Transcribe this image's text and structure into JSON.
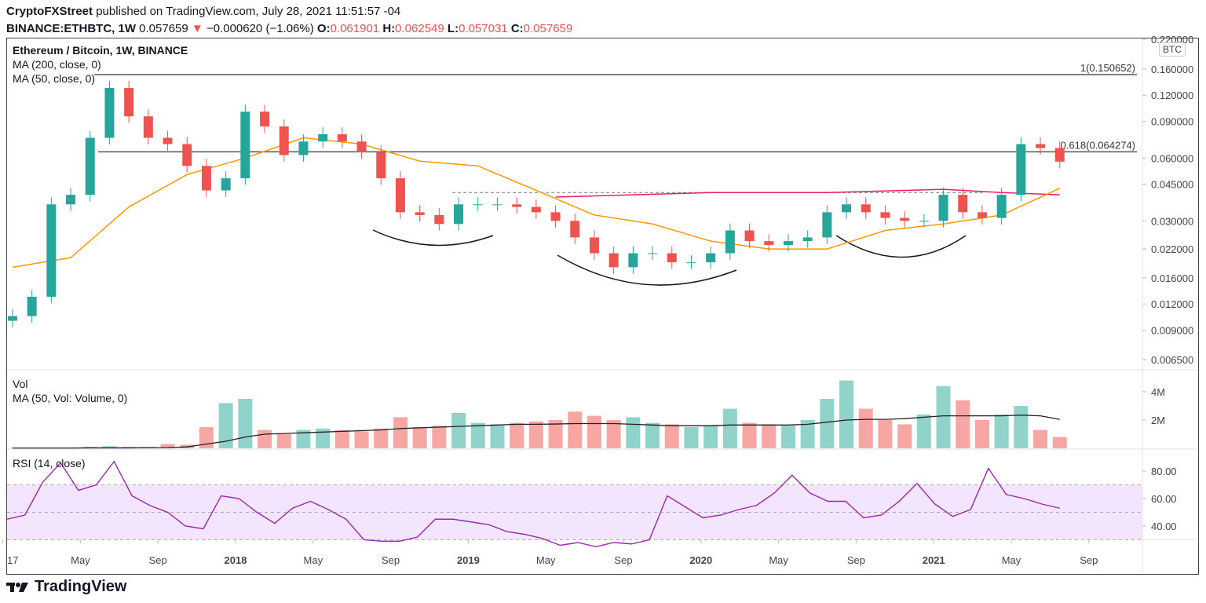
{
  "header": {
    "publisher": "CryptoFXStreet",
    "published_text": "published on TradingView.com, July 28, 2021 11:51:57 -04",
    "symbol": "BINANCE:ETHBTC, 1W",
    "last": "0.057659",
    "change": "−0.000620 (−1.06%)",
    "o_label": "O:",
    "o": "0.061901",
    "h_label": "H:",
    "h": "0.062549",
    "l_label": "L:",
    "l": "0.057031",
    "c_label": "C:",
    "c": "0.057659"
  },
  "legend": {
    "title": "Ethereum / Bitcoin, 1W, BINANCE",
    "ma200": "MA (200, close, 0)",
    "ma50": "MA (50, close, 0)",
    "vol": "Vol",
    "vol_ma": "MA (50, Vol: Volume, 0)",
    "rsi": "RSI (14, close)"
  },
  "currency": "BTC",
  "footer": {
    "brand": "TradingView"
  },
  "colors": {
    "up": "#26a69a",
    "down": "#ef5350",
    "vol_up": "#8fd3ca",
    "vol_down": "#f6a6a3",
    "ma50": "#ff9800",
    "ma200": "#e91e63",
    "rsi": "#9c27b0",
    "rsi_band": "#f3e5fd"
  },
  "chart_data": {
    "type": "candlestick",
    "scale": "log",
    "price_ticks": [
      "0.220000",
      "0.160000",
      "0.120000",
      "0.090000",
      "0.060000",
      "0.045000",
      "0.030000",
      "0.022000",
      "0.016000",
      "0.012000",
      "0.009000",
      "0.006500"
    ],
    "time_ticks": [
      {
        "date": "2017-01",
        "label": "17"
      },
      {
        "date": "2017-05",
        "label": "May"
      },
      {
        "date": "2017-09",
        "label": "Sep"
      },
      {
        "date": "2018-01",
        "label": "2018",
        "bold": true
      },
      {
        "date": "2018-05",
        "label": "May"
      },
      {
        "date": "2018-09",
        "label": "Sep"
      },
      {
        "date": "2019-01",
        "label": "2019",
        "bold": true
      },
      {
        "date": "2019-05",
        "label": "May"
      },
      {
        "date": "2019-09",
        "label": "Sep"
      },
      {
        "date": "2020-01",
        "label": "2020",
        "bold": true
      },
      {
        "date": "2020-05",
        "label": "May"
      },
      {
        "date": "2020-09",
        "label": "Sep"
      },
      {
        "date": "2021-01",
        "label": "2021",
        "bold": true
      },
      {
        "date": "2021-05",
        "label": "May"
      },
      {
        "date": "2021-09",
        "label": "Sep"
      }
    ],
    "closes": [
      [
        "2017-01",
        0.0105
      ],
      [
        "2017-02",
        0.013
      ],
      [
        "2017-03",
        0.036
      ],
      [
        "2017-04",
        0.04
      ],
      [
        "2017-05",
        0.075
      ],
      [
        "2017-06",
        0.13
      ],
      [
        "2017-07",
        0.095
      ],
      [
        "2017-08",
        0.075
      ],
      [
        "2017-09",
        0.07
      ],
      [
        "2017-10",
        0.055
      ],
      [
        "2017-11",
        0.042
      ],
      [
        "2017-12",
        0.048
      ],
      [
        "2018-01",
        0.1
      ],
      [
        "2018-02",
        0.085
      ],
      [
        "2018-03",
        0.062
      ],
      [
        "2018-04",
        0.072
      ],
      [
        "2018-05",
        0.078
      ],
      [
        "2018-06",
        0.072
      ],
      [
        "2018-07",
        0.064
      ],
      [
        "2018-08",
        0.048
      ],
      [
        "2018-09",
        0.033
      ],
      [
        "2018-10",
        0.032
      ],
      [
        "2018-11",
        0.029
      ],
      [
        "2018-12",
        0.036
      ],
      [
        "2019-01",
        0.036
      ],
      [
        "2019-02",
        0.036
      ],
      [
        "2019-03",
        0.035
      ],
      [
        "2019-04",
        0.033
      ],
      [
        "2019-05",
        0.03
      ],
      [
        "2019-06",
        0.025
      ],
      [
        "2019-07",
        0.021
      ],
      [
        "2019-08",
        0.018
      ],
      [
        "2019-09",
        0.021
      ],
      [
        "2019-10",
        0.021
      ],
      [
        "2019-11",
        0.019
      ],
      [
        "2019-12",
        0.019
      ],
      [
        "2020-01",
        0.021
      ],
      [
        "2020-02",
        0.027
      ],
      [
        "2020-03",
        0.024
      ],
      [
        "2020-04",
        0.023
      ],
      [
        "2020-05",
        0.024
      ],
      [
        "2020-06",
        0.025
      ],
      [
        "2020-07",
        0.033
      ],
      [
        "2020-08",
        0.036
      ],
      [
        "2020-09",
        0.033
      ],
      [
        "2020-10",
        0.031
      ],
      [
        "2020-11",
        0.03
      ],
      [
        "2020-12",
        0.03
      ],
      [
        "2021-01",
        0.04
      ],
      [
        "2021-02",
        0.033
      ],
      [
        "2021-03",
        0.031
      ],
      [
        "2021-04",
        0.04
      ],
      [
        "2021-05",
        0.07
      ],
      [
        "2021-06",
        0.067
      ],
      [
        "2021-07",
        0.057659
      ]
    ],
    "ma50": [
      [
        "2017-01",
        0.018
      ],
      [
        "2017-04",
        0.02
      ],
      [
        "2017-07",
        0.035
      ],
      [
        "2017-10",
        0.05
      ],
      [
        "2018-01",
        0.06
      ],
      [
        "2018-04",
        0.075
      ],
      [
        "2018-07",
        0.07
      ],
      [
        "2018-10",
        0.058
      ],
      [
        "2019-01",
        0.055
      ],
      [
        "2019-04",
        0.042
      ],
      [
        "2019-07",
        0.032
      ],
      [
        "2019-10",
        0.029
      ],
      [
        "2020-01",
        0.024
      ],
      [
        "2020-04",
        0.022
      ],
      [
        "2020-07",
        0.022
      ],
      [
        "2020-10",
        0.027
      ],
      [
        "2021-01",
        0.029
      ],
      [
        "2021-04",
        0.032
      ],
      [
        "2021-07",
        0.043
      ]
    ],
    "ma200": [
      [
        "2019-05",
        0.039
      ],
      [
        "2019-09",
        0.04
      ],
      [
        "2020-01",
        0.041
      ],
      [
        "2020-07",
        0.041
      ],
      [
        "2020-11",
        0.042
      ],
      [
        "2021-01",
        0.0425
      ],
      [
        "2021-04",
        0.041
      ],
      [
        "2021-07",
        0.04
      ]
    ],
    "fib_levels": [
      {
        "level": "1",
        "value": 0.150652,
        "label": "1(0.150652)"
      },
      {
        "level": "0.618",
        "value": 0.064274,
        "label": "0.618(0.064274)"
      }
    ],
    "neckline": {
      "from": "2018-12",
      "to": "2021-03",
      "value": 0.041
    },
    "volume": {
      "ticks": [
        "4M",
        "2M"
      ],
      "values_M": [
        0.02,
        0.03,
        0.05,
        0.05,
        0.1,
        0.15,
        0.1,
        0.1,
        0.3,
        0.25,
        1.5,
        3.2,
        3.5,
        1.3,
        1.0,
        1.3,
        1.4,
        1.3,
        1.2,
        1.4,
        2.2,
        1.5,
        1.6,
        2.5,
        1.8,
        1.7,
        1.8,
        1.9,
        2.0,
        2.6,
        2.3,
        2.0,
        2.2,
        1.8,
        1.7,
        1.5,
        1.6,
        2.8,
        1.8,
        1.7,
        1.6,
        2.0,
        3.5,
        4.8,
        2.8,
        2.0,
        1.7,
        2.4,
        4.4,
        3.4,
        2.0,
        2.4,
        3.0,
        1.3,
        0.8
      ],
      "ma_M": [
        0.02,
        0.02,
        0.02,
        0.02,
        0.03,
        0.03,
        0.03,
        0.04,
        0.05,
        0.1,
        0.3,
        0.5,
        0.8,
        1.0,
        1.05,
        1.1,
        1.15,
        1.2,
        1.25,
        1.3,
        1.4,
        1.45,
        1.5,
        1.55,
        1.6,
        1.65,
        1.7,
        1.7,
        1.72,
        1.75,
        1.75,
        1.75,
        1.7,
        1.65,
        1.6,
        1.6,
        1.6,
        1.65,
        1.65,
        1.65,
        1.65,
        1.7,
        1.85,
        2.0,
        2.05,
        2.05,
        2.1,
        2.2,
        2.3,
        2.3,
        2.3,
        2.3,
        2.35,
        2.3,
        2.05
      ]
    },
    "rsi": {
      "ticks": [
        80,
        60,
        40
      ],
      "upper": 70,
      "middle": 50,
      "lower": 30,
      "values": [
        45,
        48,
        72,
        86,
        66,
        70,
        87,
        62,
        55,
        50,
        40,
        38,
        62,
        60,
        50,
        42,
        53,
        58,
        52,
        45,
        30,
        29,
        29,
        32,
        45,
        45,
        43,
        41,
        36,
        34,
        31,
        26,
        28,
        25,
        28,
        27,
        30,
        62,
        54,
        46,
        48,
        52,
        55,
        64,
        77,
        64,
        58,
        58,
        46,
        48,
        58,
        71,
        56,
        47,
        52,
        82,
        63,
        60,
        56,
        53
      ]
    }
  }
}
